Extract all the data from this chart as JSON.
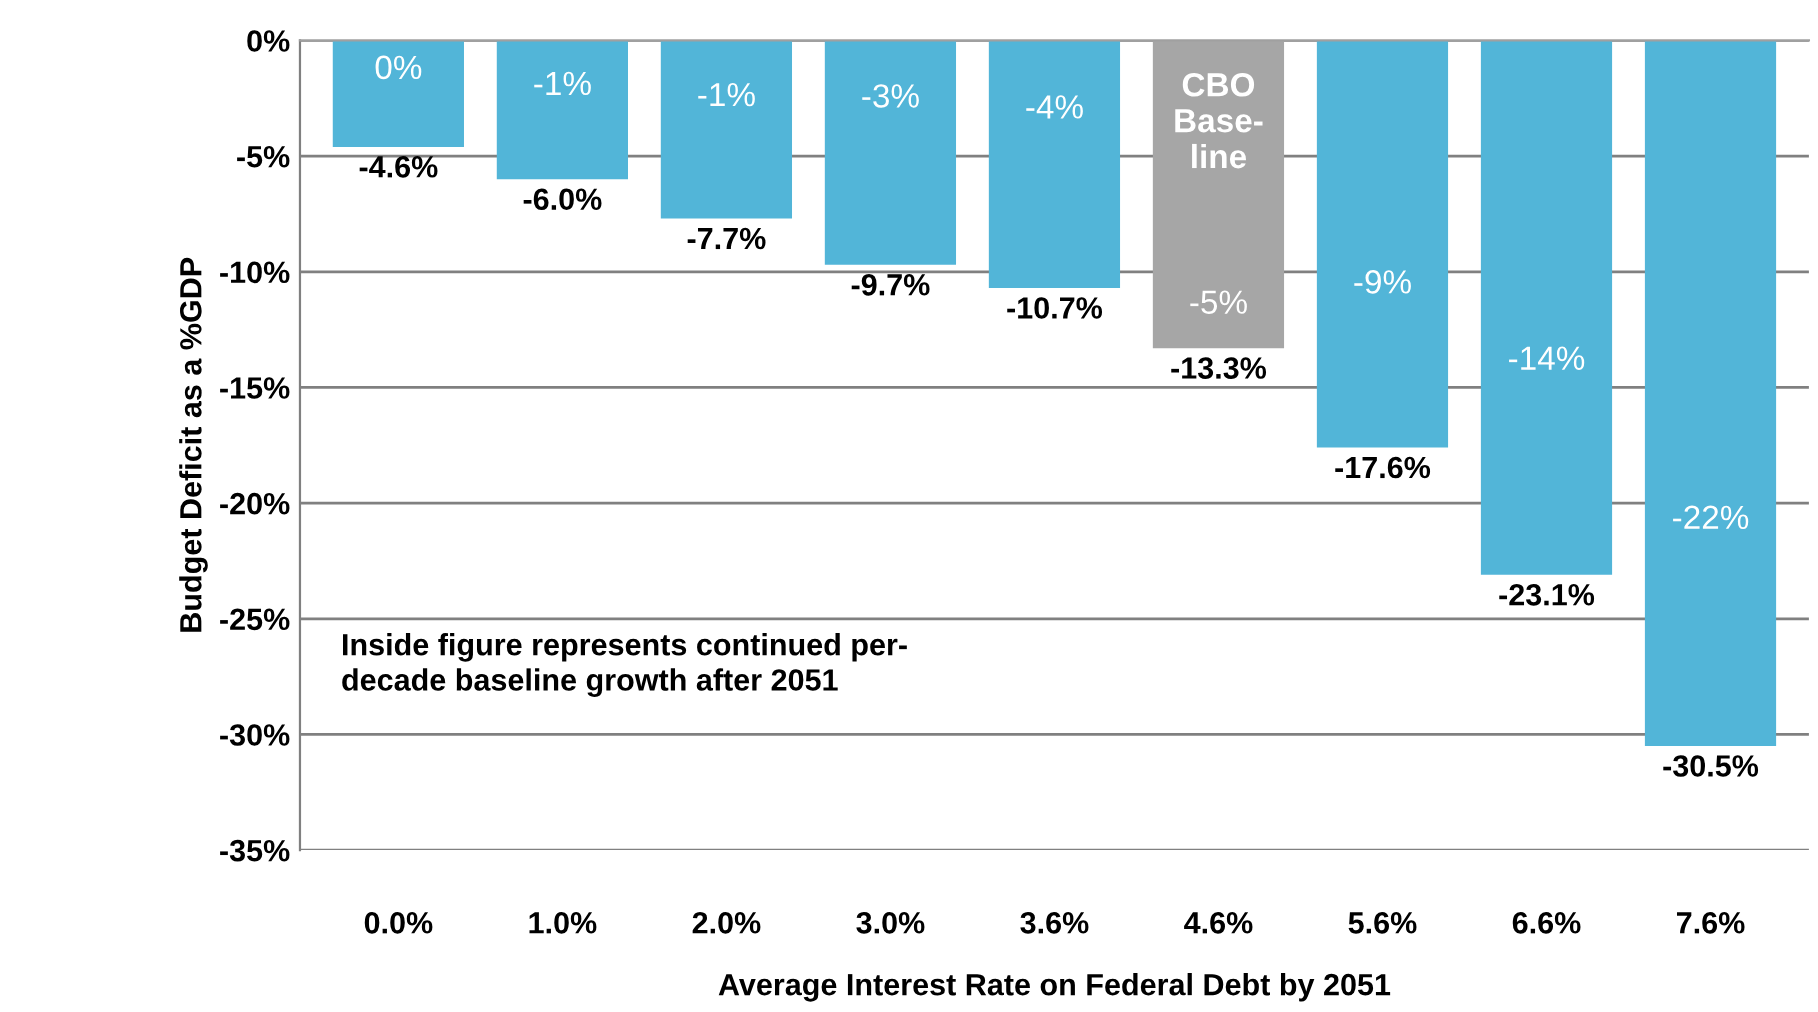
{
  "chart_data": {
    "type": "bar",
    "xlabel": "Average Interest Rate on Federal Debt by 2051",
    "ylabel": "Budget Deficit as a %GDP",
    "categories": [
      "0.0%",
      "1.0%",
      "2.0%",
      "3.0%",
      "3.6%",
      "4.6%",
      "5.6%",
      "6.6%",
      "7.6%"
    ],
    "values": [
      -4.6,
      -6.0,
      -7.7,
      -9.7,
      -10.7,
      -13.3,
      -17.6,
      -23.1,
      -30.5
    ],
    "colors": [
      "#52b5d8",
      "#52b5d8",
      "#52b5d8",
      "#52b5d8",
      "#52b5d8",
      "#a6a6a6",
      "#52b5d8",
      "#52b5d8",
      "#52b5d8"
    ],
    "value_labels": [
      "-4.6%",
      "-6.0%",
      "-7.7%",
      "-9.7%",
      "-10.7%",
      "-13.3%",
      "-17.6%",
      "-23.1%",
      "-30.5%"
    ],
    "ylim": [
      -35,
      0
    ],
    "yticks": [
      {
        "value": -35,
        "label": "-35%"
      },
      {
        "value": -30,
        "label": "-30%"
      },
      {
        "value": -25,
        "label": "-25%"
      },
      {
        "value": -20,
        "label": "-20%"
      },
      {
        "value": -15,
        "label": "-15%"
      },
      {
        "value": -10,
        "label": "-10%"
      },
      {
        "value": -5,
        "label": "-5%"
      },
      {
        "value": 0,
        "label": "0%"
      }
    ],
    "grid": "y",
    "annotations": [
      "0%",
      "-1%",
      "-1%",
      "-3%",
      "-4%",
      "CBO\nBase-\nline",
      "-5%",
      "-9%",
      "-14%",
      "-22%",
      "Inside figure represents continued per-\ndecade baseline growth after 2051"
    ]
  }
}
